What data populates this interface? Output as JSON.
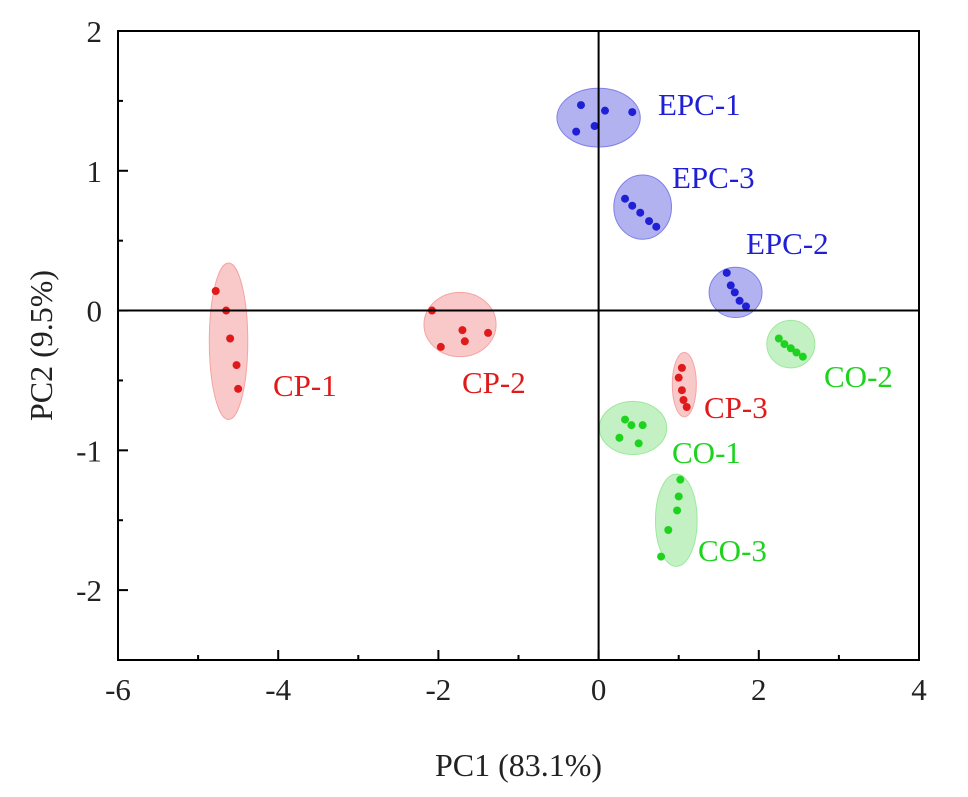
{
  "chart_data": {
    "type": "scatter",
    "xlabel": "PC1 (83.1%)",
    "ylabel": "PC2 (9.5%)",
    "xlim": [
      -6,
      4
    ],
    "ylim": [
      -2.5,
      2
    ],
    "x_ticks": [
      "-6",
      "-4",
      "-2",
      "0",
      "2",
      "4"
    ],
    "y_ticks": [
      "2",
      "1",
      "0",
      "-1",
      "-2"
    ],
    "grid": false,
    "reference_lines": {
      "x": 0,
      "y": 0
    },
    "colors": {
      "blue": "#1f1fd6",
      "blue_fill": "#7f7fe8",
      "red": "#e01a1a",
      "red_fill": "#f5a3a3",
      "green": "#1ed31e",
      "green_fill": "#9de89d"
    },
    "series": [
      {
        "name": "EPC-1",
        "color": "blue",
        "points": [
          [
            -0.22,
            1.47
          ],
          [
            0.08,
            1.43
          ],
          [
            0.42,
            1.42
          ],
          [
            -0.05,
            1.32
          ],
          [
            -0.28,
            1.28
          ]
        ],
        "ellipse": {
          "cx": 0.0,
          "cy": 1.38,
          "rx": 0.52,
          "ry": 0.21
        }
      },
      {
        "name": "EPC-3",
        "color": "blue",
        "points": [
          [
            0.33,
            0.8
          ],
          [
            0.42,
            0.75
          ],
          [
            0.52,
            0.7
          ],
          [
            0.63,
            0.64
          ],
          [
            0.72,
            0.6
          ]
        ],
        "ellipse": {
          "cx": 0.55,
          "cy": 0.74,
          "rx": 0.36,
          "ry": 0.23
        }
      },
      {
        "name": "EPC-2",
        "color": "blue",
        "points": [
          [
            1.6,
            0.27
          ],
          [
            1.65,
            0.18
          ],
          [
            1.7,
            0.13
          ],
          [
            1.76,
            0.07
          ],
          [
            1.84,
            0.03
          ]
        ],
        "ellipse": {
          "cx": 1.71,
          "cy": 0.13,
          "rx": 0.33,
          "ry": 0.18
        }
      },
      {
        "name": "CP-1",
        "color": "red",
        "points": [
          [
            -4.78,
            0.14
          ],
          [
            -4.65,
            0.0
          ],
          [
            -4.6,
            -0.2
          ],
          [
            -4.52,
            -0.39
          ],
          [
            -4.5,
            -0.56
          ]
        ],
        "ellipse": {
          "cx": -4.62,
          "cy": -0.22,
          "rx": 0.24,
          "ry": 0.56
        }
      },
      {
        "name": "CP-2",
        "color": "red",
        "points": [
          [
            -2.08,
            0.0
          ],
          [
            -1.7,
            -0.14
          ],
          [
            -1.38,
            -0.16
          ],
          [
            -1.67,
            -0.22
          ],
          [
            -1.97,
            -0.26
          ]
        ],
        "ellipse": {
          "cx": -1.73,
          "cy": -0.1,
          "rx": 0.45,
          "ry": 0.23
        }
      },
      {
        "name": "CP-3",
        "color": "red",
        "points": [
          [
            1.04,
            -0.41
          ],
          [
            1.0,
            -0.48
          ],
          [
            1.04,
            -0.57
          ],
          [
            1.06,
            -0.64
          ],
          [
            1.1,
            -0.69
          ]
        ],
        "ellipse": {
          "cx": 1.07,
          "cy": -0.53,
          "rx": 0.15,
          "ry": 0.23
        }
      },
      {
        "name": "CO-2",
        "color": "green",
        "points": [
          [
            2.25,
            -0.2
          ],
          [
            2.32,
            -0.24
          ],
          [
            2.4,
            -0.27
          ],
          [
            2.47,
            -0.3
          ],
          [
            2.55,
            -0.33
          ]
        ],
        "ellipse": {
          "cx": 2.4,
          "cy": -0.24,
          "rx": 0.3,
          "ry": 0.17
        }
      },
      {
        "name": "CO-1",
        "color": "green",
        "points": [
          [
            0.33,
            -0.78
          ],
          [
            0.41,
            -0.82
          ],
          [
            0.55,
            -0.82
          ],
          [
            0.26,
            -0.91
          ],
          [
            0.5,
            -0.95
          ]
        ],
        "ellipse": {
          "cx": 0.43,
          "cy": -0.84,
          "rx": 0.42,
          "ry": 0.19
        }
      },
      {
        "name": "CO-3",
        "color": "green",
        "points": [
          [
            1.02,
            -1.21
          ],
          [
            1.0,
            -1.33
          ],
          [
            0.98,
            -1.43
          ],
          [
            0.87,
            -1.57
          ],
          [
            0.78,
            -1.76
          ]
        ],
        "ellipse": {
          "cx": 0.97,
          "cy": -1.5,
          "rx": 0.26,
          "ry": 0.33
        }
      }
    ]
  }
}
